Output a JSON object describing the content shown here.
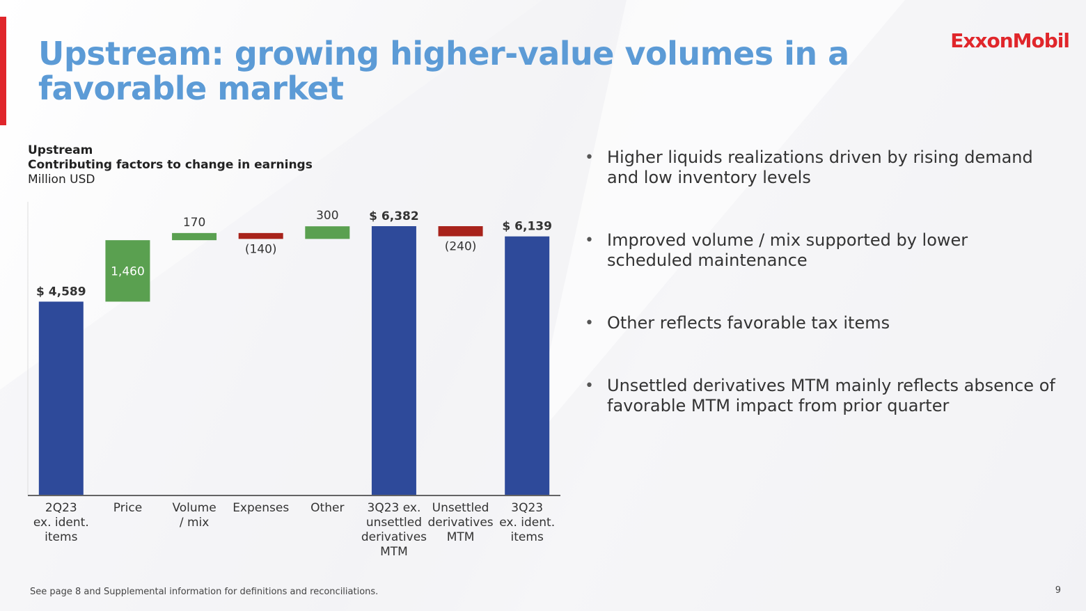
{
  "header": {
    "title": "Upstream: growing higher-value volumes in a favorable market",
    "logo": "ExxonMobil"
  },
  "chart_header": {
    "line1": "Upstream",
    "line2": "Contributing factors to change in earnings",
    "unit": "Million USD"
  },
  "chart_data": {
    "type": "bar",
    "subtype": "waterfall",
    "ylim": [
      0,
      6500
    ],
    "grid": false,
    "colors": {
      "total": "#2e4a9a",
      "increase": "#5aa050",
      "decrease": "#a8231b"
    },
    "bars": [
      {
        "category": "2Q23\nex. ident.\nitems",
        "kind": "total",
        "value": 4589,
        "label": "$ 4,589"
      },
      {
        "category": "Price",
        "kind": "increase",
        "value": 1460,
        "label": "1,460"
      },
      {
        "category": "Volume\n/ mix",
        "kind": "increase",
        "value": 170,
        "label": "170"
      },
      {
        "category": "Expenses",
        "kind": "decrease",
        "value": -140,
        "label": "(140)"
      },
      {
        "category": "Other",
        "kind": "increase",
        "value": 300,
        "label": "300"
      },
      {
        "category": "3Q23 ex.\nunsettled\nderivatives\nMTM",
        "kind": "total",
        "value": 6382,
        "label": "$ 6,382"
      },
      {
        "category": "Unsettled\nderivatives\nMTM",
        "kind": "decrease",
        "value": -240,
        "label": "(240)"
      },
      {
        "category": "3Q23\nex. ident.\nitems",
        "kind": "total",
        "value": 6139,
        "label": "$ 6,139"
      }
    ]
  },
  "bullets": [
    "Higher liquids realizations driven by rising demand and low inventory levels",
    "Improved volume / mix supported by lower scheduled maintenance",
    "Other reflects favorable tax items",
    "Unsettled derivatives MTM mainly reflects absence of favorable MTM impact from prior quarter"
  ],
  "bullet_marker": "•",
  "footnote": "See page 8 and Supplemental information for definitions and reconciliations.",
  "page_number": "9"
}
